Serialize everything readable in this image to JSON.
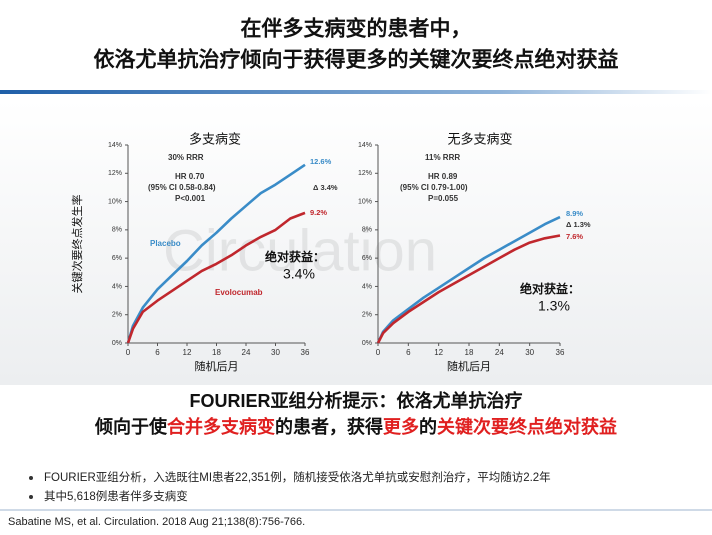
{
  "slide": {
    "title": [
      "在伴多支病变的患者中，",
      "依洛尤单抗治疗倾向于获得更多的关键次要终点绝对获益"
    ],
    "watermark": "Circulation",
    "summary": {
      "line1": "FOURIER亚组分析提示：依洛尤单抗治疗",
      "line2": [
        {
          "text": "倾向于使",
          "color": "#111111"
        },
        {
          "text": "合并多支病变",
          "color": "#e02020"
        },
        {
          "text": "的患者，获得",
          "color": "#111111"
        },
        {
          "text": "更多",
          "color": "#e02020"
        },
        {
          "text": "的",
          "color": "#111111"
        },
        {
          "text": "关键次要终点绝对获益",
          "color": "#e02020"
        }
      ]
    },
    "bullets": [
      "FOURIER亚组分析，入选既往MI患者22,351例，随机接受依洛尤单抗或安慰剂治疗，平均随访2.2年",
      "其中5,618例患者伴多支病变"
    ],
    "citation": "Sabatine MS, et al. Circulation. 2018 Aug 21;138(8):756-766."
  },
  "chart_data": [
    {
      "type": "line",
      "title": "多支病变",
      "y_label": "关键次要终点发生率",
      "x_label": "随机后月",
      "grid": false,
      "x": [
        0,
        1,
        3,
        6,
        9,
        12,
        15,
        18,
        21,
        24,
        27,
        30,
        33,
        36
      ],
      "xlim": [
        0,
        36
      ],
      "xticks": [
        0,
        6,
        12,
        18,
        24,
        30,
        36
      ],
      "ylim": [
        0,
        14
      ],
      "yticks": [
        {
          "value": 0,
          "label": "0%"
        },
        {
          "value": 2,
          "label": "2%"
        },
        {
          "value": 4,
          "label": "4%"
        },
        {
          "value": 6,
          "label": "6%"
        },
        {
          "value": 8,
          "label": "8%"
        },
        {
          "value": 10,
          "label": "10%"
        },
        {
          "value": 12,
          "label": "12%"
        },
        {
          "value": 14,
          "label": "14%"
        }
      ],
      "series": [
        {
          "name": "Placebo",
          "color": "#3a8cc8",
          "values": [
            0,
            1.2,
            2.5,
            3.8,
            4.8,
            5.8,
            6.9,
            7.8,
            8.8,
            9.7,
            10.6,
            11.2,
            11.9,
            12.6
          ]
        },
        {
          "name": "Evolocumab",
          "color": "#c0272d",
          "values": [
            0,
            1.0,
            2.2,
            3.0,
            3.7,
            4.4,
            5.1,
            5.6,
            6.2,
            6.9,
            7.5,
            8.0,
            8.8,
            9.2
          ]
        }
      ],
      "annotations": [
        "30% RRR",
        "HR 0.70",
        "(95% CI 0.58-0.84)",
        "P<0.001",
        "12.6%",
        "Δ 3.4%",
        "9.2%",
        "绝对获益：",
        "3.4%"
      ]
    },
    {
      "type": "line",
      "title": "无多支病变",
      "x_label": "随机后月",
      "grid": false,
      "x": [
        0,
        1,
        3,
        6,
        9,
        12,
        15,
        18,
        21,
        24,
        27,
        30,
        33,
        36
      ],
      "xlim": [
        0,
        36
      ],
      "xticks": [
        0,
        6,
        12,
        18,
        24,
        30,
        36
      ],
      "ylim": [
        0,
        14
      ],
      "yticks": [
        {
          "value": 0,
          "label": "0%"
        },
        {
          "value": 2,
          "label": "2%"
        },
        {
          "value": 4,
          "label": "4%"
        },
        {
          "value": 6,
          "label": "6%"
        },
        {
          "value": 8,
          "label": "8%"
        },
        {
          "value": 10,
          "label": "10%"
        },
        {
          "value": 12,
          "label": "12%"
        },
        {
          "value": 14,
          "label": "14%"
        }
      ],
      "series": [
        {
          "color": "#3a8cc8",
          "values": [
            0,
            0.8,
            1.6,
            2.4,
            3.2,
            3.9,
            4.6,
            5.3,
            6.0,
            6.6,
            7.2,
            7.8,
            8.4,
            8.9
          ]
        },
        {
          "color": "#c0272d",
          "values": [
            0,
            0.7,
            1.4,
            2.2,
            2.9,
            3.6,
            4.2,
            4.8,
            5.4,
            6.0,
            6.6,
            7.1,
            7.4,
            7.6
          ]
        }
      ],
      "annotations": [
        "11% RRR",
        "HR 0.89",
        "(95% CI 0.79-1.00)",
        "P=0.055",
        "8.9%",
        "Δ 1.3%",
        "7.6%",
        "绝对获益：",
        "1.3%"
      ]
    }
  ]
}
